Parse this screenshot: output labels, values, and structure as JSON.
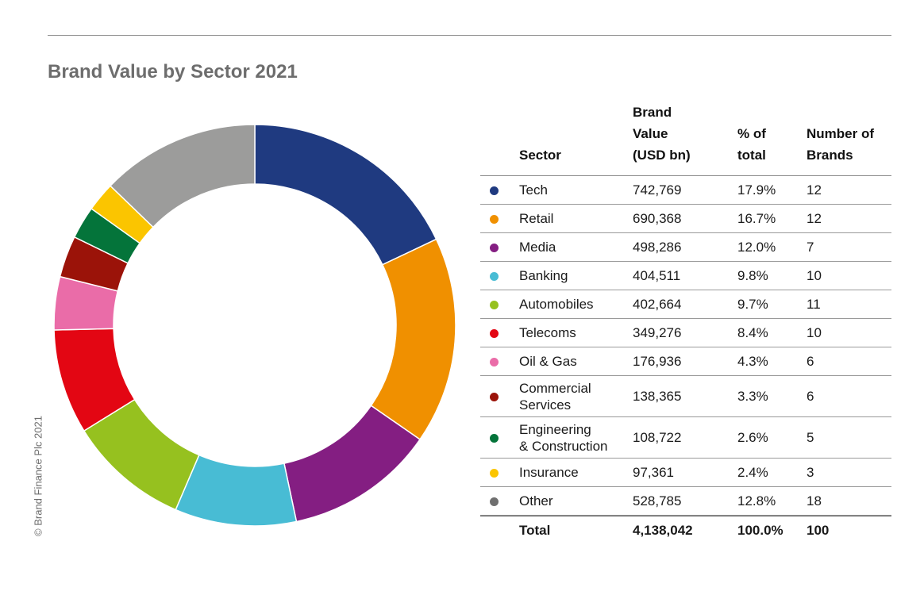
{
  "title": "Brand Value by Sector 2021",
  "copyright": "© Brand Finance Plc 2021",
  "table": {
    "headers": {
      "sector": "Sector",
      "value": "Brand\nValue\n(USD bn)",
      "pct": "% of\n total",
      "num": "Number of\nBrands"
    },
    "total": {
      "label": "Total",
      "value": "4,138,042",
      "pct": "100.0%",
      "num": "100"
    }
  },
  "chart_data": {
    "type": "pie",
    "subtype": "donut",
    "title": "Brand Value by Sector 2021",
    "unit": "USD bn",
    "categories": [
      "Tech",
      "Retail",
      "Media",
      "Banking",
      "Automobiles",
      "Telecoms",
      "Oil & Gas",
      "Commercial\nServices",
      "Engineering\n& Construction",
      "Insurance",
      "Other"
    ],
    "values": [
      742769,
      690368,
      498286,
      404511,
      402664,
      349276,
      176936,
      138365,
      108722,
      97361,
      528785
    ],
    "value_labels": [
      "742,769",
      "690,368",
      "498,286",
      "404,511",
      "402,664",
      "349,276",
      "176,936",
      "138,365",
      "108,722",
      "97,361",
      "528,785"
    ],
    "percent_labels": [
      "17.9%",
      "16.7%",
      "12.0%",
      "9.8%",
      "9.7%",
      "8.4%",
      "4.3%",
      "3.3%",
      "2.6%",
      "2.4%",
      "12.8%"
    ],
    "brand_counts": [
      "12",
      "12",
      "7",
      "10",
      "11",
      "10",
      "6",
      "6",
      "5",
      "3",
      "18"
    ],
    "colors": [
      "#1f3a80",
      "#f09000",
      "#841e82",
      "#48bcd4",
      "#96c11f",
      "#e30613",
      "#ea6ca8",
      "#9b1309",
      "#04743a",
      "#fbc500",
      "#9c9c9b"
    ],
    "legend_dot_colors": [
      "#1f3a80",
      "#f09000",
      "#841e82",
      "#48bcd4",
      "#96c11f",
      "#e30613",
      "#ea6ca8",
      "#9b1309",
      "#04743a",
      "#fbc500",
      "#6f6f6f"
    ],
    "start_angle": "12 o'clock",
    "direction": "clockwise"
  }
}
